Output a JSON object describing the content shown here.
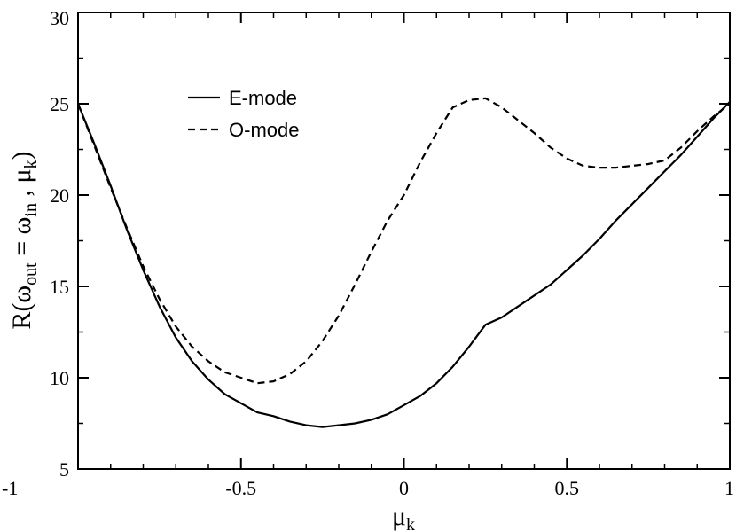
{
  "chart_data": {
    "type": "line",
    "xlabel": {
      "base": "μ",
      "sub": "k"
    },
    "ylabel": {
      "parts": [
        {
          "t": "R(ω",
          "sub": false
        },
        {
          "t": "out",
          "sub": true
        },
        {
          "t": " = ω",
          "sub": false
        },
        {
          "t": "in",
          "sub": true
        },
        {
          "t": " , μ",
          "sub": false
        },
        {
          "t": "k",
          "sub": true
        },
        {
          "t": ")",
          "sub": false
        }
      ]
    },
    "xlim": [
      -1,
      1
    ],
    "ylim": [
      5,
      30
    ],
    "xticks": [
      -1,
      -0.5,
      0,
      0.5,
      1
    ],
    "xtick_labels": [
      "-1",
      "-0.5",
      "0",
      "0.5",
      "1"
    ],
    "yticks": [
      5,
      10,
      15,
      20,
      25,
      30
    ],
    "ytick_labels": [
      "5",
      "10",
      "15",
      "20",
      "25",
      "30"
    ],
    "minor_x_step": 0.1,
    "minor_y_step": 2.5,
    "grid": false,
    "legend_position": "top-left",
    "series": [
      {
        "name": "E-mode",
        "dash": "solid",
        "x": [
          -1,
          -0.95,
          -0.9,
          -0.85,
          -0.8,
          -0.75,
          -0.7,
          -0.65,
          -0.6,
          -0.55,
          -0.5,
          -0.45,
          -0.4,
          -0.35,
          -0.3,
          -0.25,
          -0.2,
          -0.15,
          -0.1,
          -0.05,
          0,
          0.05,
          0.1,
          0.15,
          0.2,
          0.25,
          0.3,
          0.35,
          0.4,
          0.45,
          0.5,
          0.55,
          0.6,
          0.65,
          0.7,
          0.75,
          0.8,
          0.85,
          0.9,
          0.95,
          1
        ],
        "y": [
          25.0,
          22.8,
          20.5,
          18.1,
          15.9,
          13.9,
          12.2,
          10.9,
          9.9,
          9.1,
          8.6,
          8.1,
          7.9,
          7.6,
          7.4,
          7.3,
          7.4,
          7.5,
          7.7,
          8.0,
          8.5,
          9.0,
          9.7,
          10.6,
          11.7,
          12.9,
          13.3,
          13.9,
          14.5,
          15.1,
          15.9,
          16.7,
          17.6,
          18.6,
          19.5,
          20.4,
          21.3,
          22.2,
          23.2,
          24.2,
          25.1
        ]
      },
      {
        "name": "O-mode",
        "dash": "dashed",
        "x": [
          -1,
          -0.95,
          -0.9,
          -0.85,
          -0.8,
          -0.75,
          -0.7,
          -0.65,
          -0.6,
          -0.55,
          -0.5,
          -0.45,
          -0.4,
          -0.35,
          -0.3,
          -0.25,
          -0.2,
          -0.15,
          -0.1,
          -0.05,
          0,
          0.05,
          0.1,
          0.15,
          0.2,
          0.25,
          0.3,
          0.35,
          0.4,
          0.45,
          0.5,
          0.55,
          0.6,
          0.65,
          0.7,
          0.75,
          0.8,
          0.85,
          0.9,
          0.95,
          1
        ],
        "y": [
          25.0,
          22.7,
          20.4,
          18.2,
          16.1,
          14.3,
          12.8,
          11.7,
          10.9,
          10.3,
          10.0,
          9.7,
          9.8,
          10.2,
          10.9,
          12.0,
          13.4,
          15.1,
          16.9,
          18.6,
          20.0,
          21.8,
          23.4,
          24.8,
          25.2,
          25.3,
          24.8,
          24.1,
          23.4,
          22.6,
          22.0,
          21.6,
          21.5,
          21.5,
          21.6,
          21.7,
          21.9,
          22.6,
          23.5,
          24.3,
          25.0
        ]
      }
    ]
  }
}
